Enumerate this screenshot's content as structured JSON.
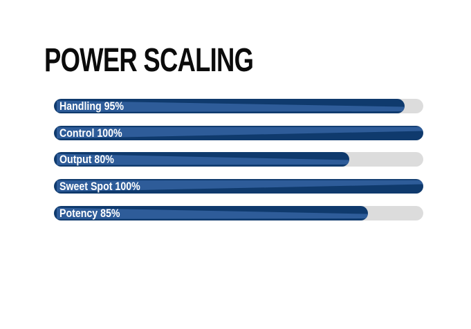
{
  "title": "POWER SCALING",
  "colors": {
    "background": "#ffffff",
    "title_text": "#0b0b0b",
    "bar_base_dark": "#0f3a6d",
    "bar_sheen_light": "#2e5c99",
    "track_gray": "#dcdcdc",
    "label_text": "#ffffff"
  },
  "bars": [
    {
      "label": "Handling 95%",
      "value": 95,
      "sheen": "down"
    },
    {
      "label": "Control 100%",
      "value": 100,
      "sheen": "up"
    },
    {
      "label": "Output 80%",
      "value": 80,
      "sheen": "down"
    },
    {
      "label": "Sweet Spot 100%",
      "value": 100,
      "sheen": "up"
    },
    {
      "label": "Potency 85%",
      "value": 85,
      "sheen": "down"
    }
  ],
  "chart_data": {
    "type": "bar",
    "orientation": "horizontal",
    "title": "POWER SCALING",
    "categories": [
      "Handling",
      "Control",
      "Output",
      "Sweet Spot",
      "Potency"
    ],
    "values": [
      95,
      100,
      80,
      100,
      85
    ],
    "unit": "%",
    "data_labels": [
      "Handling 95%",
      "Control 100%",
      "Output 80%",
      "Sweet Spot 100%",
      "Potency 85%"
    ],
    "xlim": [
      0,
      100
    ],
    "grid": false,
    "legend": false
  }
}
